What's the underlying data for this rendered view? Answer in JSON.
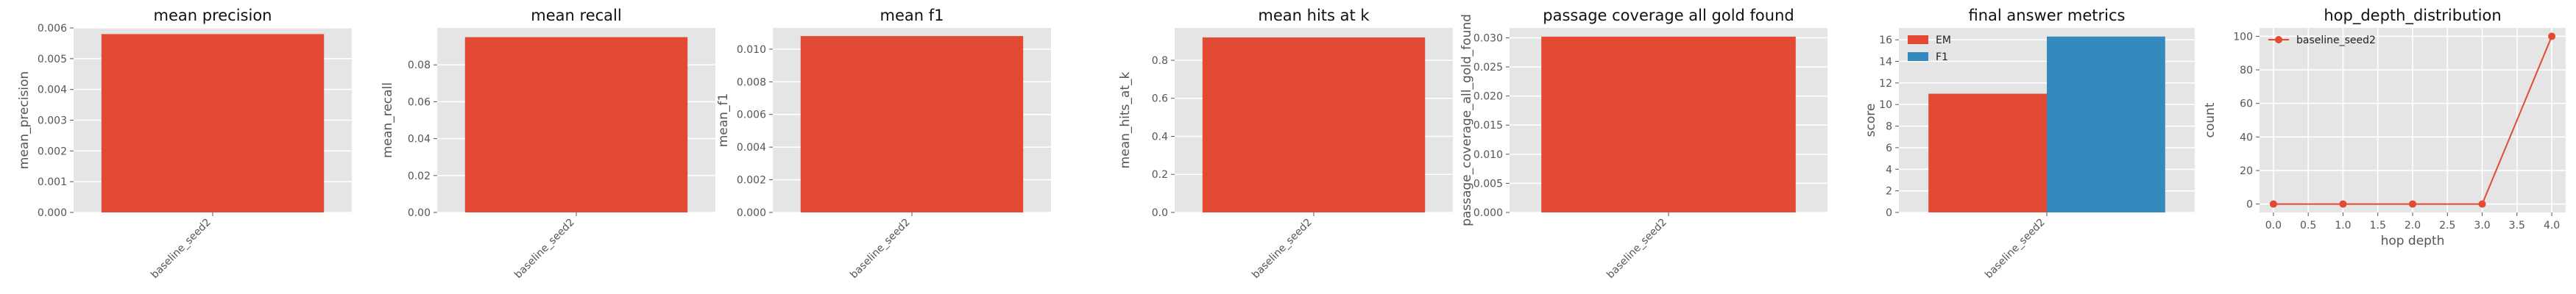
{
  "chart_data": [
    {
      "type": "bar",
      "title": "mean precision",
      "ylabel": "mean_precision",
      "xlabel": "",
      "categories": [
        "baseline_seed2"
      ],
      "values": [
        0.0058
      ],
      "ylim": [
        0,
        0.006
      ],
      "yticks": [
        0.0,
        0.001,
        0.002,
        0.003,
        0.004,
        0.005,
        0.006
      ],
      "ytick_labels": [
        "0.000",
        "0.001",
        "0.002",
        "0.003",
        "0.004",
        "0.005",
        "0.006"
      ],
      "grid": true,
      "color": "#E24A33"
    },
    {
      "type": "bar",
      "title": "mean recall",
      "ylabel": "mean_recall",
      "xlabel": "",
      "categories": [
        "baseline_seed2"
      ],
      "values": [
        0.095
      ],
      "ylim": [
        0,
        0.1
      ],
      "yticks": [
        0.0,
        0.02,
        0.04,
        0.06,
        0.08
      ],
      "ytick_labels": [
        "0.00",
        "0.02",
        "0.04",
        "0.06",
        "0.08"
      ],
      "grid": true,
      "color": "#E24A33"
    },
    {
      "type": "bar",
      "title": "mean f1",
      "ylabel": "mean_f1",
      "xlabel": "",
      "categories": [
        "baseline_seed2"
      ],
      "values": [
        0.0108
      ],
      "ylim": [
        0,
        0.0113
      ],
      "yticks": [
        0.0,
        0.002,
        0.004,
        0.006,
        0.008,
        0.01
      ],
      "ytick_labels": [
        "0.000",
        "0.002",
        "0.004",
        "0.006",
        "0.008",
        "0.010"
      ],
      "grid": true,
      "color": "#E24A33"
    },
    {
      "type": "bar",
      "title": "mean hits at k",
      "ylabel": "mean_hits_at_k",
      "xlabel": "",
      "categories": [
        "baseline_seed2"
      ],
      "values": [
        0.92
      ],
      "ylim": [
        0,
        0.97
      ],
      "yticks": [
        0.0,
        0.2,
        0.4,
        0.6,
        0.8
      ],
      "ytick_labels": [
        "0.0",
        "0.2",
        "0.4",
        "0.6",
        "0.8"
      ],
      "grid": true,
      "color": "#E24A33"
    },
    {
      "type": "bar",
      "title": "passage coverage all gold found",
      "ylabel": "passage_coverage_all_gold_found",
      "xlabel": "",
      "categories": [
        "baseline_seed2"
      ],
      "values": [
        0.0302
      ],
      "ylim": [
        0,
        0.0317
      ],
      "yticks": [
        0.0,
        0.005,
        0.01,
        0.015,
        0.02,
        0.025,
        0.03
      ],
      "ytick_labels": [
        "0.000",
        "0.005",
        "0.010",
        "0.015",
        "0.020",
        "0.025",
        "0.030"
      ],
      "grid": true,
      "color": "#E24A33"
    },
    {
      "type": "bar",
      "title": "final answer metrics",
      "ylabel": "score",
      "xlabel": "",
      "categories": [
        "baseline_seed2"
      ],
      "series": [
        {
          "name": "EM",
          "values": [
            11.0
          ],
          "color": "#E24A33"
        },
        {
          "name": "F1",
          "values": [
            16.3
          ],
          "color": "#348ABD"
        }
      ],
      "ylim": [
        0,
        17.1
      ],
      "yticks": [
        0,
        2,
        4,
        6,
        8,
        10,
        12,
        14,
        16
      ],
      "ytick_labels": [
        "0",
        "2",
        "4",
        "6",
        "8",
        "10",
        "12",
        "14",
        "16"
      ],
      "grid": true,
      "legend": "top-left"
    },
    {
      "type": "line",
      "title": "hop_depth_distribution",
      "ylabel": "count",
      "xlabel": "hop depth",
      "series": [
        {
          "name": "baseline_seed2",
          "x": [
            0.0,
            1.0,
            2.0,
            3.0,
            4.0
          ],
          "values": [
            0,
            0,
            0,
            0,
            100
          ],
          "color": "#E24A33"
        }
      ],
      "xlim": [
        -0.2,
        4.2
      ],
      "ylim": [
        -5,
        105
      ],
      "xticks": [
        0.0,
        0.5,
        1.0,
        1.5,
        2.0,
        2.5,
        3.0,
        3.5,
        4.0
      ],
      "xtick_labels": [
        "0.0",
        "0.5",
        "1.0",
        "1.5",
        "2.0",
        "2.5",
        "3.0",
        "3.5",
        "4.0"
      ],
      "yticks": [
        0,
        20,
        40,
        60,
        80,
        100
      ],
      "ytick_labels": [
        "0",
        "20",
        "40",
        "60",
        "80",
        "100"
      ],
      "grid": true,
      "legend": "top-left"
    }
  ]
}
